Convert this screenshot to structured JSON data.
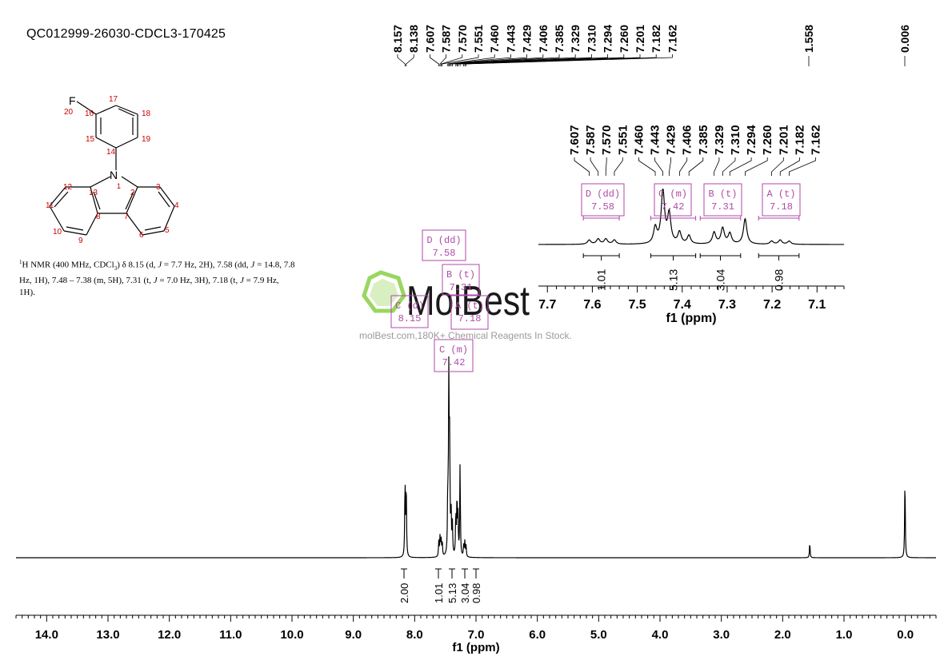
{
  "sample_id": "QC012999-26030-CDCL3-170425",
  "nmr_text": {
    "sup": "1",
    "p1": "H NMR (400 MHz, CDCl",
    "sub": "3",
    "p2": ") δ 8.15 (d, ",
    "j1": "J",
    "p3": " = 7.7 Hz, 2H), 7.58 (dd, ",
    "j2": "J",
    "p4": " = 14.8, 7.8 Hz, 1H), 7.48 – 7.38 (m, 5H), 7.31 (t, ",
    "j3": "J",
    "p5": " = 7.0 Hz, 3H), 7.18 (t, ",
    "j4": "J",
    "p6": " = 7.9 Hz, 1H)."
  },
  "watermark": {
    "logo_text": "MolBest",
    "sub_text": "molBest.com,180K+ Chemical Reagents In Stock."
  },
  "molecule": {
    "atoms": [
      "F",
      "20",
      "16",
      "17",
      "18",
      "19",
      "14",
      "15",
      "N",
      "1",
      "12",
      "13",
      "2",
      "3",
      "11",
      "4",
      "8",
      "7",
      "10",
      "9",
      "6",
      "5"
    ]
  },
  "chart_data": [
    {
      "type": "line",
      "name": "main-spectrum",
      "xlabel": "f1 (ppm)",
      "xlim": [
        14.5,
        -0.5
      ],
      "x_ticks": [
        "14.0",
        "13.0",
        "12.0",
        "11.0",
        "10.0",
        "9.0",
        "8.0",
        "7.0",
        "6.0",
        "5.0",
        "4.0",
        "3.0",
        "2.0",
        "1.0",
        "0.0"
      ],
      "peaks": [
        {
          "ppm": 8.157,
          "height": 0.4
        },
        {
          "ppm": 8.138,
          "height": 0.38
        },
        {
          "ppm": 7.607,
          "height": 0.08
        },
        {
          "ppm": 7.587,
          "height": 0.1
        },
        {
          "ppm": 7.57,
          "height": 0.1
        },
        {
          "ppm": 7.551,
          "height": 0.08
        },
        {
          "ppm": 7.46,
          "height": 0.3
        },
        {
          "ppm": 7.443,
          "height": 1.0
        },
        {
          "ppm": 7.429,
          "height": 0.55
        },
        {
          "ppm": 7.406,
          "height": 0.22
        },
        {
          "ppm": 7.385,
          "height": 0.16
        },
        {
          "ppm": 7.329,
          "height": 0.22
        },
        {
          "ppm": 7.31,
          "height": 0.3
        },
        {
          "ppm": 7.294,
          "height": 0.2
        },
        {
          "ppm": 7.26,
          "height": 0.48
        },
        {
          "ppm": 7.201,
          "height": 0.06
        },
        {
          "ppm": 7.182,
          "height": 0.08
        },
        {
          "ppm": 7.162,
          "height": 0.06
        },
        {
          "ppm": 1.558,
          "height": 0.08
        },
        {
          "ppm": 0.006,
          "height": 0.42
        }
      ],
      "peak_labels_top_group1": [
        "8.157",
        "8.138",
        "7.607",
        "7.587",
        "7.570",
        "7.551",
        "7.460",
        "7.443",
        "7.429",
        "7.406",
        "7.385",
        "7.329",
        "7.310",
        "7.294",
        "7.260",
        "7.201",
        "7.182",
        "7.162"
      ],
      "peak_label_single_1": "1.558",
      "peak_label_single_2": "0.006",
      "integrals": [
        {
          "from": 8.18,
          "to": 8.11,
          "value": "2.00"
        },
        {
          "from": 7.62,
          "to": 7.54,
          "value": "1.01"
        },
        {
          "from": 7.47,
          "to": 7.37,
          "value": "5.13"
        },
        {
          "from": 7.35,
          "to": 7.27,
          "value": "3.04"
        },
        {
          "from": 7.22,
          "to": 7.15,
          "value": "0.98"
        }
      ],
      "multiplet_labels": [
        {
          "letter": "D (dd)",
          "shift": "7.58"
        },
        {
          "letter": "B (t)",
          "shift": "7.31"
        },
        {
          "letter": "C (d)",
          "shift": "8.15"
        },
        {
          "letter": "A (t)",
          "shift": "7.18"
        },
        {
          "letter": "C (m)",
          "shift": "7.42"
        }
      ]
    },
    {
      "type": "line",
      "name": "inset-spectrum",
      "xlabel": "f1 (ppm)",
      "xlim": [
        7.72,
        7.04
      ],
      "x_ticks": [
        "7.7",
        "7.6",
        "7.5",
        "7.4",
        "7.3",
        "7.2",
        "7.1"
      ],
      "peak_labels": [
        "7.607",
        "7.587",
        "7.570",
        "7.551",
        "7.460",
        "7.443",
        "7.429",
        "7.406",
        "7.385",
        "7.329",
        "7.310",
        "7.294",
        "7.260",
        "7.201",
        "7.182",
        "7.162"
      ],
      "integrals": [
        {
          "from": 7.62,
          "to": 7.54,
          "value": "1.01"
        },
        {
          "from": 7.47,
          "to": 7.37,
          "value": "5.13"
        },
        {
          "from": 7.36,
          "to": 7.27,
          "value": "3.04"
        },
        {
          "from": 7.23,
          "to": 7.14,
          "value": "0.98"
        }
      ],
      "multiplet_labels": [
        {
          "letter": "D (dd)",
          "shift": "7.58"
        },
        {
          "letter": "C (m)",
          "shift": "7.42"
        },
        {
          "letter": "B (t)",
          "shift": "7.31"
        },
        {
          "letter": "A (t)",
          "shift": "7.18"
        }
      ]
    }
  ]
}
